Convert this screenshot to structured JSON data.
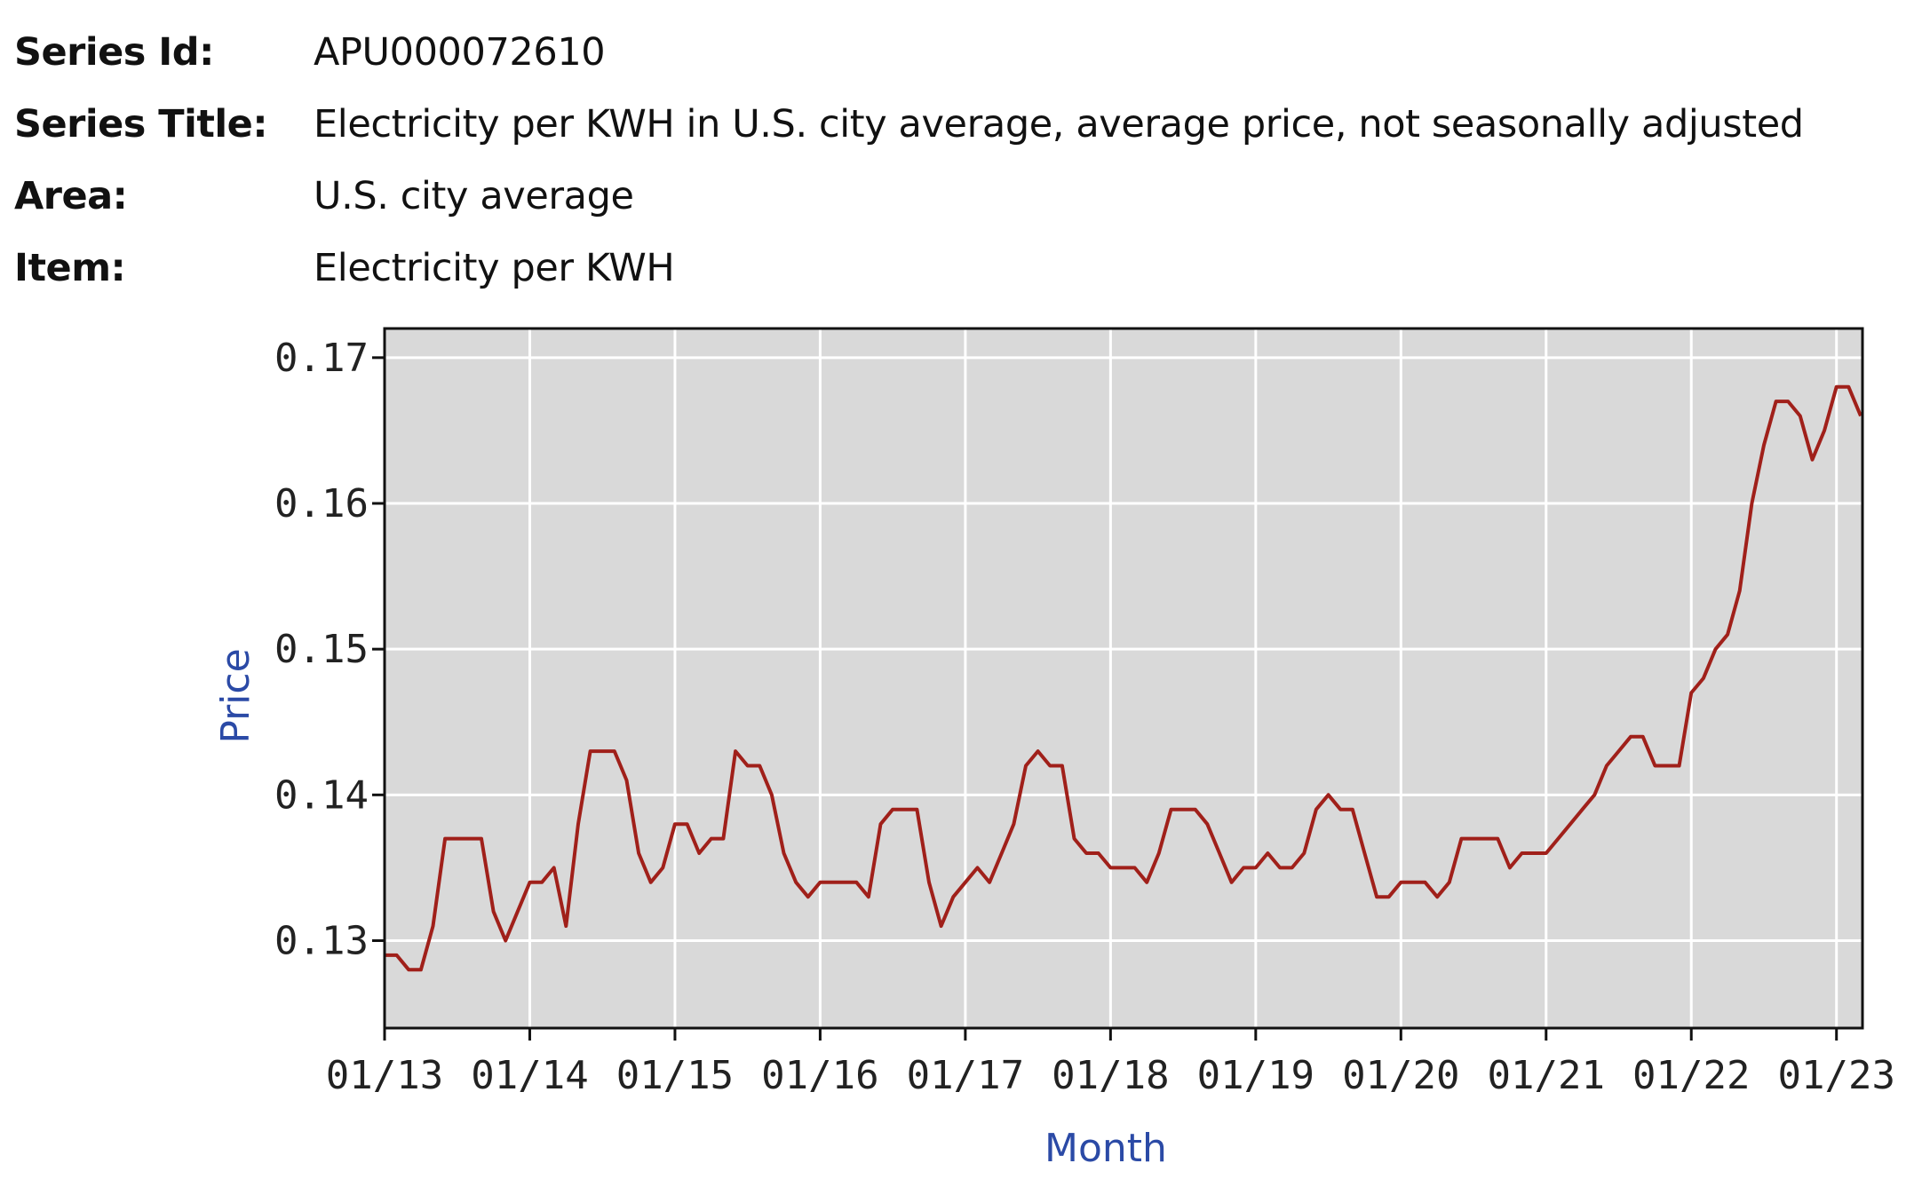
{
  "series_info": {
    "rows": [
      {
        "label": "Series Id:",
        "value": "APU000072610"
      },
      {
        "label": "Series Title:",
        "value": "Electricity per KWH in U.S. city average, average price, not seasonally adjusted"
      },
      {
        "label": "Area:",
        "value": "U.S. city average"
      },
      {
        "label": "Item:",
        "value": "Electricity per KWH"
      }
    ]
  },
  "chart_data": {
    "type": "line",
    "title": "",
    "xlabel": "Month",
    "ylabel": "Price",
    "x_tick_labels": [
      "01/13",
      "01/14",
      "01/15",
      "01/16",
      "01/17",
      "01/18",
      "01/19",
      "01/20",
      "01/21",
      "01/22",
      "01/23"
    ],
    "y_tick_labels": [
      "0.13",
      "0.14",
      "0.15",
      "0.16",
      "0.17"
    ],
    "y_ticks": [
      0.13,
      0.14,
      0.15,
      0.16,
      0.17
    ],
    "ylim": [
      0.124,
      0.172
    ],
    "xlim": [
      "2013-01",
      "2023-03"
    ],
    "grid": true,
    "legend": "none",
    "colors": {
      "line": "#a0201a",
      "plot_background": "#d9d9d9",
      "grid": "#ffffff",
      "axis_title": "#2b4aa6"
    },
    "series": [
      {
        "x": [
          "2013-01",
          "2013-02",
          "2013-03",
          "2013-04",
          "2013-05",
          "2013-06",
          "2013-07",
          "2013-08",
          "2013-09",
          "2013-10",
          "2013-11",
          "2013-12",
          "2014-01",
          "2014-02",
          "2014-03",
          "2014-04",
          "2014-05",
          "2014-06",
          "2014-07",
          "2014-08",
          "2014-09",
          "2014-10",
          "2014-11",
          "2014-12",
          "2015-01",
          "2015-02",
          "2015-03",
          "2015-04",
          "2015-05",
          "2015-06",
          "2015-07",
          "2015-08",
          "2015-09",
          "2015-10",
          "2015-11",
          "2015-12",
          "2016-01",
          "2016-02",
          "2016-03",
          "2016-04",
          "2016-05",
          "2016-06",
          "2016-07",
          "2016-08",
          "2016-09",
          "2016-10",
          "2016-11",
          "2016-12",
          "2017-01",
          "2017-02",
          "2017-03",
          "2017-04",
          "2017-05",
          "2017-06",
          "2017-07",
          "2017-08",
          "2017-09",
          "2017-10",
          "2017-11",
          "2017-12",
          "2018-01",
          "2018-02",
          "2018-03",
          "2018-04",
          "2018-05",
          "2018-06",
          "2018-07",
          "2018-08",
          "2018-09",
          "2018-10",
          "2018-11",
          "2018-12",
          "2019-01",
          "2019-02",
          "2019-03",
          "2019-04",
          "2019-05",
          "2019-06",
          "2019-07",
          "2019-08",
          "2019-09",
          "2019-10",
          "2019-11",
          "2019-12",
          "2020-01",
          "2020-02",
          "2020-03",
          "2020-04",
          "2020-05",
          "2020-06",
          "2020-07",
          "2020-08",
          "2020-09",
          "2020-10",
          "2020-11",
          "2020-12",
          "2021-01",
          "2021-02",
          "2021-03",
          "2021-04",
          "2021-05",
          "2021-06",
          "2021-07",
          "2021-08",
          "2021-09",
          "2021-10",
          "2021-11",
          "2021-12",
          "2022-01",
          "2022-02",
          "2022-03",
          "2022-04",
          "2022-05",
          "2022-06",
          "2022-07",
          "2022-08",
          "2022-09",
          "2022-10",
          "2022-11",
          "2022-12",
          "2023-01",
          "2023-02",
          "2023-03"
        ],
        "values": [
          0.129,
          0.129,
          0.128,
          0.128,
          0.131,
          0.137,
          0.137,
          0.137,
          0.137,
          0.132,
          0.13,
          0.132,
          0.134,
          0.134,
          0.135,
          0.131,
          0.138,
          0.143,
          0.143,
          0.143,
          0.141,
          0.136,
          0.134,
          0.135,
          0.138,
          0.138,
          0.136,
          0.137,
          0.137,
          0.143,
          0.142,
          0.142,
          0.14,
          0.136,
          0.134,
          0.133,
          0.134,
          0.134,
          0.134,
          0.134,
          0.133,
          0.138,
          0.139,
          0.139,
          0.139,
          0.134,
          0.131,
          0.133,
          0.134,
          0.135,
          0.134,
          0.136,
          0.138,
          0.142,
          0.143,
          0.142,
          0.142,
          0.137,
          0.136,
          0.136,
          0.135,
          0.135,
          0.135,
          0.134,
          0.136,
          0.139,
          0.139,
          0.139,
          0.138,
          0.136,
          0.134,
          0.135,
          0.135,
          0.136,
          0.135,
          0.135,
          0.136,
          0.139,
          0.14,
          0.139,
          0.139,
          0.136,
          0.133,
          0.133,
          0.134,
          0.134,
          0.134,
          0.133,
          0.134,
          0.137,
          0.137,
          0.137,
          0.137,
          0.135,
          0.136,
          0.136,
          0.136,
          0.137,
          0.138,
          0.139,
          0.14,
          0.142,
          0.143,
          0.144,
          0.144,
          0.142,
          0.142,
          0.142,
          0.147,
          0.148,
          0.15,
          0.151,
          0.154,
          0.16,
          0.164,
          0.167,
          0.167,
          0.166,
          0.163,
          0.165,
          0.168,
          0.168,
          0.166
        ]
      }
    ]
  }
}
